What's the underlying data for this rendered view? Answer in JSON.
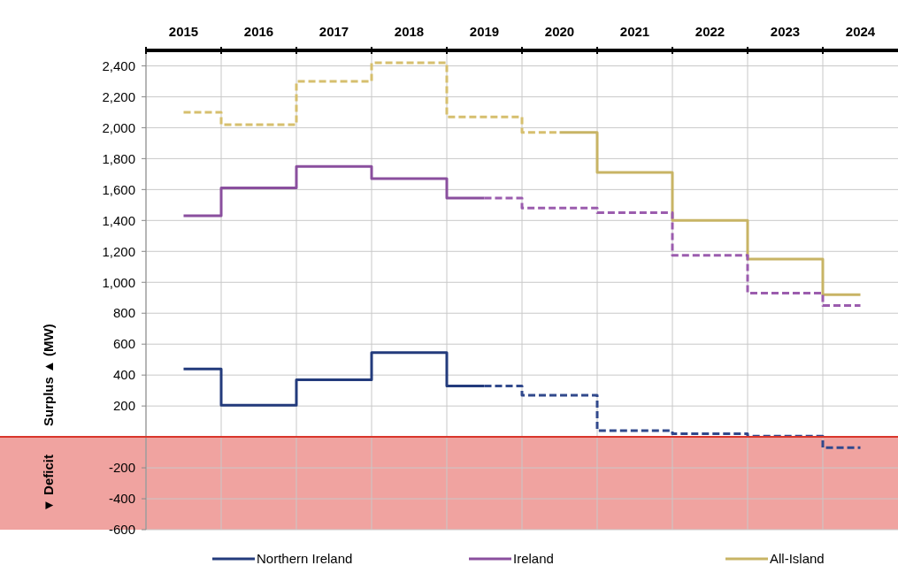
{
  "chart_data": {
    "type": "step",
    "categories": [
      "2015",
      "2016",
      "2017",
      "2018",
      "2019",
      "2020",
      "2021",
      "2022",
      "2023",
      "2024"
    ],
    "ylabel": "Surplus ▲ (MW)",
    "ylim": [
      -600,
      2500
    ],
    "yticks": [
      {
        "value": -600,
        "label": "-600"
      },
      {
        "value": -400,
        "label": "-400"
      },
      {
        "value": -200,
        "label": "-200"
      },
      {
        "value": 0,
        "label": null
      },
      200,
      400,
      600,
      800,
      {
        "value": 1000,
        "label": "1,000"
      },
      {
        "value": 1200,
        "label": "1,200"
      },
      {
        "value": 1400,
        "label": "1,400"
      },
      {
        "value": 1600,
        "label": "1,600"
      },
      {
        "value": 1800,
        "label": "1,800"
      },
      {
        "value": 2000,
        "label": "2,000"
      },
      {
        "value": 2200,
        "label": "2,200"
      },
      {
        "value": 2400,
        "label": "2,400"
      }
    ],
    "grid": true,
    "legend": "bottom",
    "series": [
      {
        "name": "Northern Ireland",
        "color": "#233b7c",
        "line_style": "solid",
        "values": [
          440,
          205,
          370,
          545,
          330,
          null,
          null,
          null,
          null,
          null
        ]
      },
      {
        "name": "Ireland",
        "color": "#8a4f9e",
        "line_style": "solid",
        "values": [
          1430,
          1610,
          1750,
          1670,
          1545,
          null,
          null,
          null,
          null,
          null
        ]
      },
      {
        "name": "All-Island",
        "color": "#c8b465",
        "line_style": "solid",
        "values": [
          null,
          null,
          null,
          null,
          null,
          1970,
          1710,
          1400,
          1150,
          920
        ]
      },
      {
        "color": "#31498c",
        "line_style": "dashed",
        "values": [
          null,
          null,
          null,
          null,
          330,
          270,
          40,
          20,
          5,
          -70
        ]
      },
      {
        "color": "#9b5cae",
        "line_style": "dashed",
        "values": [
          null,
          null,
          null,
          null,
          1545,
          1480,
          1450,
          1175,
          930,
          850
        ]
      },
      {
        "color": "#d6bf6e",
        "line_style": "dashed",
        "values": [
          2100,
          2020,
          2300,
          2420,
          2070,
          1970,
          null,
          null,
          null,
          null
        ]
      }
    ],
    "ref_lines": [
      {
        "axis": "y",
        "value": 0,
        "color": "#d9362b"
      }
    ],
    "bands": [
      {
        "axis": "y",
        "from": -600,
        "to": 0,
        "label": "▼ Deficit",
        "color": "#f0a3a0"
      }
    ]
  }
}
